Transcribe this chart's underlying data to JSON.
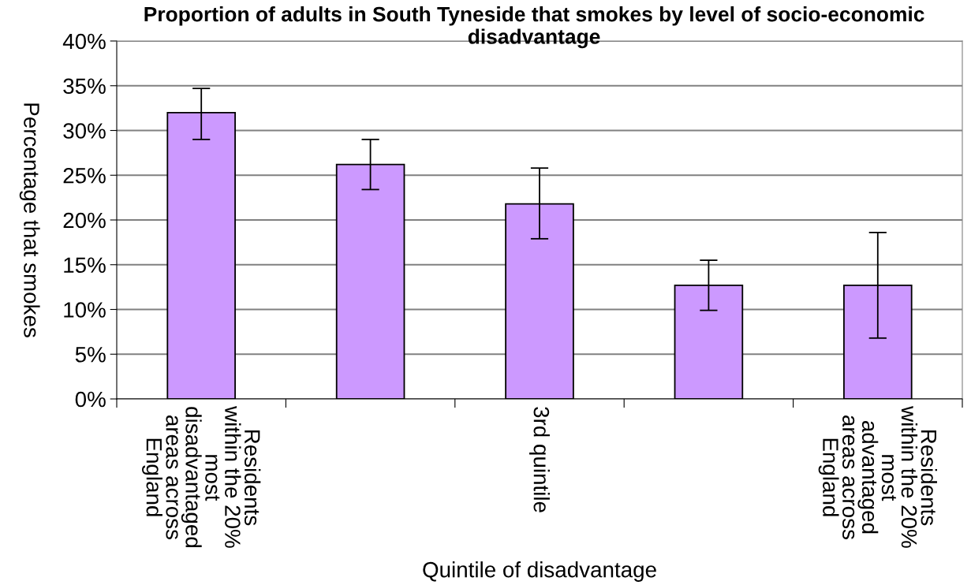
{
  "chart_data": {
    "type": "bar",
    "title": "Proportion of adults in South Tyneside that smokes by level of socio-economic disadvantage",
    "xlabel": "Quintile of disadvantage",
    "ylabel": "Percentage that smokes",
    "categories": [
      "Residents within the 20% most disadvantaged areas across England",
      null,
      "3rd quintile",
      null,
      "Residents within the 20% most advantaged areas across England"
    ],
    "values": [
      32,
      26.2,
      21.8,
      12.7,
      12.7
    ],
    "errors": [
      [
        29.0,
        34.7
      ],
      [
        23.4,
        29.0
      ],
      [
        17.9,
        25.8
      ],
      [
        9.9,
        15.5
      ],
      [
        6.8,
        18.6
      ]
    ],
    "color": "#cc99ff",
    "ylim": [
      0,
      40
    ],
    "yticks": [
      {
        "value": 0,
        "label": "0%"
      },
      {
        "value": 5,
        "label": "5%"
      },
      {
        "value": 10,
        "label": "10%"
      },
      {
        "value": 15,
        "label": "15%"
      },
      {
        "value": 20,
        "label": "20%"
      },
      {
        "value": 25,
        "label": "25%"
      },
      {
        "value": 30,
        "label": "30%"
      },
      {
        "value": 35,
        "label": "35%"
      },
      {
        "value": 40,
        "label": "40%"
      }
    ],
    "grid": "y",
    "legend": false
  }
}
